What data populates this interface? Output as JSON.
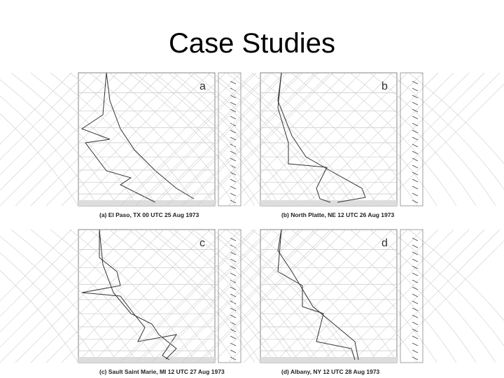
{
  "header": {
    "title": "Case Studies"
  },
  "panels": [
    {
      "letter": "a",
      "caption": "(a) El Paso, TX 00 UTC 25 Aug 1973"
    },
    {
      "letter": "b",
      "caption": "(b) North Platte, NE 12 UTC 26 Aug 1973"
    },
    {
      "letter": "c",
      "caption": "(c) Sault Saint Marie, MI 12 UTC 27 Aug 1973"
    },
    {
      "letter": "d",
      "caption": "(d) Albany, NY 12 UTC 28 Aug 1973"
    }
  ]
}
